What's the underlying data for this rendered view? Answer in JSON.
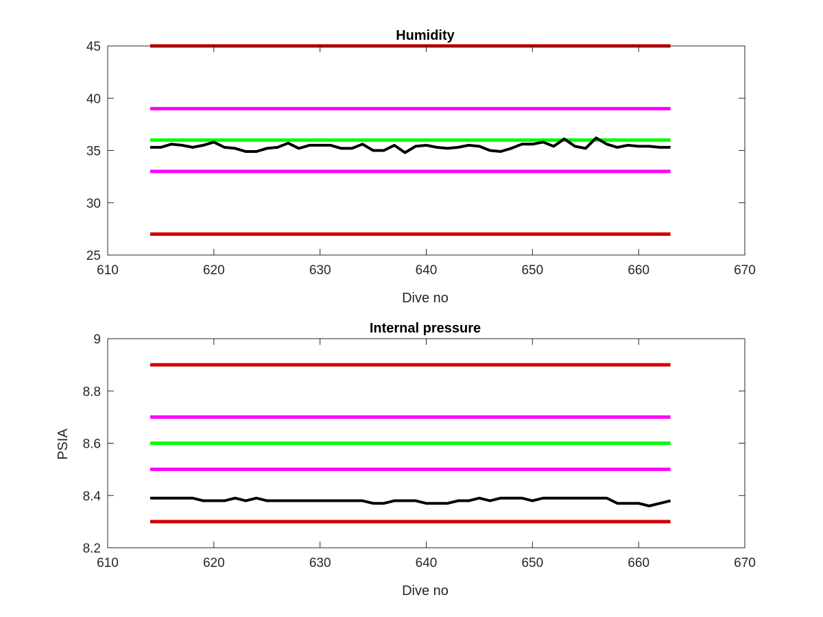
{
  "chart_data": [
    {
      "type": "line",
      "title": "Humidity",
      "xlabel": "Dive no",
      "ylabel": "",
      "xlim": [
        610,
        670
      ],
      "ylim": [
        25,
        45
      ],
      "xticks": [
        610,
        620,
        630,
        640,
        650,
        660,
        670
      ],
      "yticks": [
        25,
        30,
        35,
        40,
        45
      ],
      "grid": false,
      "reference_lines": [
        {
          "y": 45,
          "x": [
            614,
            663
          ],
          "color": "#d00000"
        },
        {
          "y": 39,
          "x": [
            614,
            663
          ],
          "color": "#ff00ff"
        },
        {
          "y": 36,
          "x": [
            614,
            663
          ],
          "color": "#00ff00"
        },
        {
          "y": 33,
          "x": [
            614,
            663
          ],
          "color": "#ff00ff"
        },
        {
          "y": 27,
          "x": [
            614,
            663
          ],
          "color": "#d00000"
        }
      ],
      "series": [
        {
          "color": "#000000",
          "x": [
            614,
            615,
            616,
            617,
            618,
            619,
            620,
            621,
            622,
            623,
            624,
            625,
            626,
            627,
            628,
            629,
            630,
            631,
            632,
            633,
            634,
            635,
            636,
            637,
            638,
            639,
            640,
            641,
            642,
            643,
            644,
            645,
            646,
            647,
            648,
            649,
            650,
            651,
            652,
            653,
            654,
            655,
            656,
            657,
            658,
            659,
            660,
            661,
            662,
            663
          ],
          "values": [
            35.3,
            35.3,
            35.6,
            35.5,
            35.3,
            35.5,
            35.8,
            35.3,
            35.2,
            34.9,
            34.9,
            35.2,
            35.3,
            35.7,
            35.2,
            35.5,
            35.5,
            35.5,
            35.2,
            35.2,
            35.6,
            35.0,
            35.0,
            35.5,
            34.8,
            35.4,
            35.5,
            35.3,
            35.2,
            35.3,
            35.5,
            35.4,
            35.0,
            34.9,
            35.2,
            35.6,
            35.6,
            35.8,
            35.4,
            36.1,
            35.4,
            35.2,
            36.2,
            35.6,
            35.3,
            35.5,
            35.4,
            35.4,
            35.3,
            35.3
          ]
        }
      ]
    },
    {
      "type": "line",
      "title": "Internal pressure",
      "xlabel": "Dive no",
      "ylabel": "PSIA",
      "xlim": [
        610,
        670
      ],
      "ylim": [
        8.2,
        9
      ],
      "xticks": [
        610,
        620,
        630,
        640,
        650,
        660,
        670
      ],
      "yticks": [
        8.2,
        8.4,
        8.6,
        8.8,
        9
      ],
      "grid": false,
      "reference_lines": [
        {
          "y": 8.9,
          "x": [
            614,
            663
          ],
          "color": "#d00000"
        },
        {
          "y": 8.7,
          "x": [
            614,
            663
          ],
          "color": "#ff00ff"
        },
        {
          "y": 8.6,
          "x": [
            614,
            663
          ],
          "color": "#00ff00"
        },
        {
          "y": 8.5,
          "x": [
            614,
            663
          ],
          "color": "#ff00ff"
        },
        {
          "y": 8.3,
          "x": [
            614,
            663
          ],
          "color": "#d00000"
        }
      ],
      "series": [
        {
          "color": "#000000",
          "x": [
            614,
            615,
            616,
            617,
            618,
            619,
            620,
            621,
            622,
            623,
            624,
            625,
            626,
            627,
            628,
            629,
            630,
            631,
            632,
            633,
            634,
            635,
            636,
            637,
            638,
            639,
            640,
            641,
            642,
            643,
            644,
            645,
            646,
            647,
            648,
            649,
            650,
            651,
            652,
            653,
            654,
            655,
            656,
            657,
            658,
            659,
            660,
            661,
            662,
            663
          ],
          "values": [
            8.39,
            8.39,
            8.39,
            8.39,
            8.39,
            8.38,
            8.38,
            8.38,
            8.39,
            8.38,
            8.39,
            8.38,
            8.38,
            8.38,
            8.38,
            8.38,
            8.38,
            8.38,
            8.38,
            8.38,
            8.38,
            8.37,
            8.37,
            8.38,
            8.38,
            8.38,
            8.37,
            8.37,
            8.37,
            8.38,
            8.38,
            8.39,
            8.38,
            8.39,
            8.39,
            8.39,
            8.38,
            8.39,
            8.39,
            8.39,
            8.39,
            8.39,
            8.39,
            8.39,
            8.37,
            8.37,
            8.37,
            8.36,
            8.37,
            8.38
          ]
        }
      ]
    }
  ]
}
